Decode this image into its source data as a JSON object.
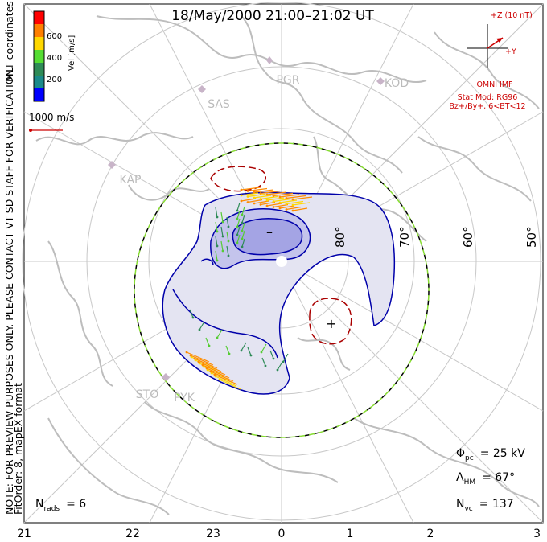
{
  "title": "18/May/2000 21:00–21:02 UT",
  "side_note_1": "NOTE: FOR PREVIEW PURPOSES ONLY. PLEASE CONTACT VT-SD STAFF FOR VERIFICATION.",
  "side_note_2": "FitOrder: 8, mapEX format",
  "side_note_3": "MLT coordinates",
  "colorbar": {
    "label": "Vel [m/s]",
    "ticks": [
      "600",
      "400",
      "200"
    ],
    "colors": [
      "#ff0000",
      "#ff7f00",
      "#ffd800",
      "#55dd33",
      "#2e8b57",
      "#1a8a8a",
      "#0000ff"
    ]
  },
  "scale_vector_label": "1000 m/s",
  "imf": {
    "z_label": "+Z (10 nT)",
    "y_label": "+Y",
    "omni": "OMNI IMF",
    "stat_mod": "Stat Mod: RG96",
    "condition": "Bz+/By+, 6<BT<12"
  },
  "stations": [
    "PGR",
    "KOD",
    "SAS",
    "KAP",
    "STO",
    "PYK"
  ],
  "lat_labels": [
    "80°",
    "70°",
    "60°",
    "50°"
  ],
  "mlt_labels": [
    "21",
    "22",
    "23",
    "0",
    "1",
    "2",
    "3"
  ],
  "potential_signs": {
    "min": "–",
    "max": "+"
  },
  "stats": {
    "phi_label": "Φ",
    "phi_sub": "pc",
    "phi_value": "= 25 kV",
    "lambda_label": "Λ",
    "lambda_sub": "HM",
    "lambda_value": "= 67°",
    "nvc_label": "N",
    "nvc_sub": "vc",
    "nvc_value": "= 137",
    "nrads_label": "N",
    "nrads_sub": "rads",
    "nrads_value": "= 6"
  },
  "colors": {
    "coast": "#bdbdbd",
    "grid": "#c8c8c8",
    "contour_neg": "#0000aa",
    "contour_pos": "#aa0000",
    "fill_light": "#e4e4f2",
    "fill_mid": "#c4c4ec",
    "fill_dark": "#a4a4e4",
    "imf_red": "#cc0000",
    "station": "#c8b4c8"
  }
}
